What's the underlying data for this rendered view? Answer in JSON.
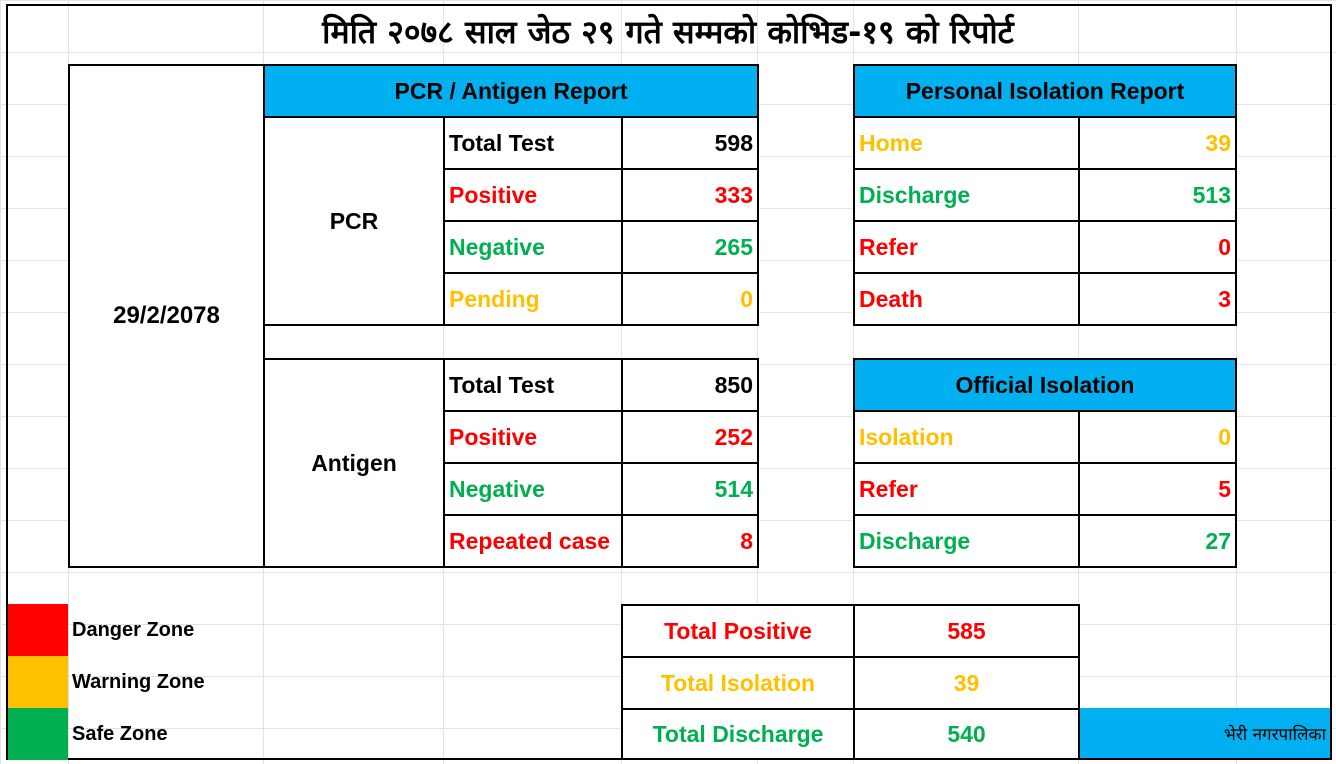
{
  "title": "मिति २०७८ साल जेठ २९ गते सम्मको कोभिड-१९ को रिपोर्ट",
  "date": "29/2/2078",
  "pcr_antigen_header": "PCR / Antigen Report",
  "pcr": {
    "label": "PCR",
    "rows": [
      {
        "label": "Total Test",
        "value": "598"
      },
      {
        "label": "Positive",
        "value": "333"
      },
      {
        "label": "Negative",
        "value": "265"
      },
      {
        "label": "Pending",
        "value": "0"
      }
    ]
  },
  "antigen": {
    "label": "Antigen",
    "rows": [
      {
        "label": "Total Test",
        "value": "850"
      },
      {
        "label": "Positive",
        "value": "252"
      },
      {
        "label": "Negative",
        "value": "514"
      },
      {
        "label": "Repeated case",
        "value": "8"
      }
    ]
  },
  "personal_isolation": {
    "header": "Personal Isolation Report",
    "rows": [
      {
        "label": "Home",
        "value": "39"
      },
      {
        "label": "Discharge",
        "value": "513"
      },
      {
        "label": "Refer",
        "value": "0"
      },
      {
        "label": "Death",
        "value": "3"
      }
    ]
  },
  "official_isolation": {
    "header": "Official Isolation",
    "rows": [
      {
        "label": "Isolation",
        "value": "0"
      },
      {
        "label": "Refer",
        "value": "5"
      },
      {
        "label": "Discharge",
        "value": "27"
      }
    ]
  },
  "legend": {
    "danger": "Danger Zone",
    "warning": "Warning Zone",
    "safe": "Safe Zone"
  },
  "totals": [
    {
      "label": "Total Positive",
      "value": "585"
    },
    {
      "label": "Total Isolation",
      "value": "39"
    },
    {
      "label": "Total Discharge",
      "value": "540"
    }
  ],
  "municipality": "भेरी नगरपालिका",
  "colors": {
    "danger": "#ff0000",
    "warning": "#ffc000",
    "safe": "#00b050",
    "header": "#00b0f0"
  }
}
